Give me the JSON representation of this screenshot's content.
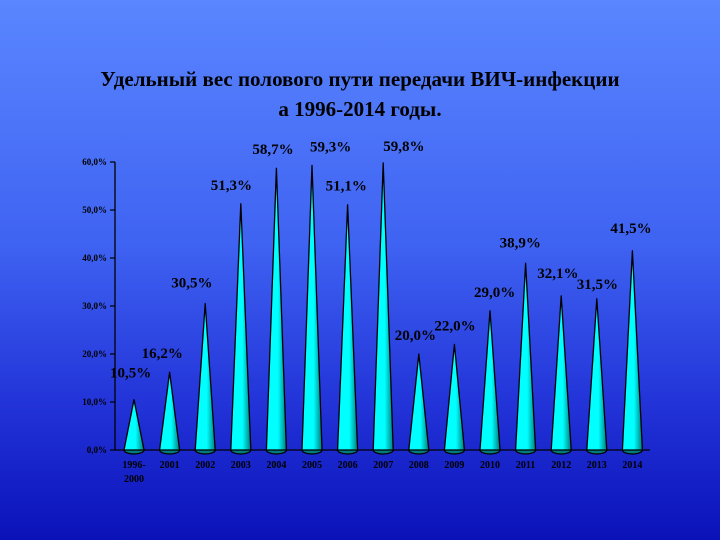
{
  "slide": {
    "title_line1": "Удельный вес полового пути передачи ВИЧ-инфекции",
    "title_line2": "а 1996-2014 годы."
  },
  "chart_data": {
    "type": "bar",
    "bar_shape": "cone",
    "categories": [
      "1996-2000",
      "2001",
      "2002",
      "2003",
      "2004",
      "2005",
      "2006",
      "2007",
      "2008",
      "2009",
      "2010",
      "2011",
      "2012",
      "2013",
      "2014"
    ],
    "values": [
      10.5,
      16.2,
      30.5,
      51.3,
      58.7,
      59.3,
      51.1,
      59.8,
      20.0,
      22.0,
      29.0,
      38.9,
      32.1,
      31.5,
      41.5
    ],
    "data_labels": [
      "10,5%",
      "16,2%",
      "30,5%",
      "51,3%",
      "58,7%",
      "59,3%",
      "51,1%",
      "59,8%",
      "20,0%",
      "22,0%",
      "29,0%",
      "38,9%",
      "32,1%",
      "31,5%",
      "41,5%"
    ],
    "y_ticks": [
      "0,0%",
      "10,0%",
      "20,0%",
      "30,0%",
      "40,0%",
      "50,0%",
      "60,0%"
    ],
    "ylim": [
      0,
      60
    ],
    "title": "Удельный вес полового пути передачи ВИЧ-инфекции а 1996-2014 годы.",
    "xlabel": "",
    "ylabel": "",
    "grid": false,
    "legend": "none",
    "colors": {
      "bar_fill": "#00ffff",
      "bar_shade": "#007c7c",
      "bar_outline": "#000000"
    }
  }
}
